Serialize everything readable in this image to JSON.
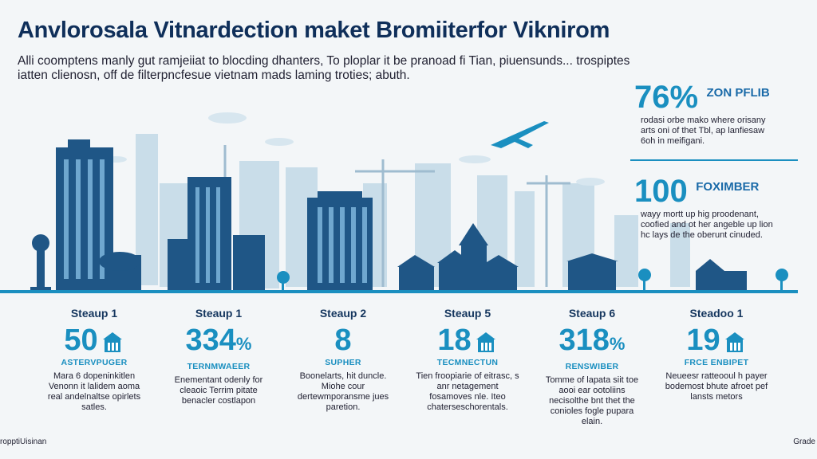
{
  "title": "Anvlorosala Vitnardection maket Bromiiterfor Viknirom",
  "intro": "Alli coomptens manly gut ramjeiiat to blocding dhanters, To ploplar it be pranoad fi Tian, piuensunds... trospiptes iatten clienosn, off de filterpncfesue vietnam mads laming troties; abuth.",
  "colors": {
    "accent": "#1a8fc0",
    "dark": "#15365e",
    "skyline_light": "#b9d3e2",
    "skyline_dark": "#1f5686"
  },
  "side_stats": [
    {
      "value": "76%",
      "label": "ZON PFLIB",
      "text": "rodasi orbe mako where orisany arts oni of thet Tbl, ap lanfiesaw 6oh in meifigani."
    },
    {
      "value": "100",
      "label": "FOXIMBER",
      "text": "wayy mortt up hig proodenant, coofied and ot her angeble up lion hc lays de the oberunt cinuded."
    }
  ],
  "steps": [
    {
      "header": "Steaup 1",
      "value": "50",
      "icon": "building-icon",
      "label": "ASTERVPUGER",
      "text": "Mara 6 dopeninkitlen Venonn it lalidem aoma real andelnaltse opirlets satles."
    },
    {
      "header": "Steaup 1",
      "value": "334",
      "suffix": "%",
      "label": "TERNMWAEER",
      "text": "Enementant odenly for cleaoic Terrim pitate benacler costlapon"
    },
    {
      "header": "Steaup 2",
      "value": "8",
      "label": "SUPHER",
      "text": "Boonelarts, hit duncle. Miohe cour dertewmporansme jues paretion."
    },
    {
      "header": "Steaup 5",
      "value": "18",
      "icon": "building-icon",
      "label": "TECMNECTUN",
      "text": "Tien froopiarie of eitrasc, s anr netagement fosamoves nle. Iteo chaterseschorentals."
    },
    {
      "header": "Steaup 6",
      "value": "318",
      "suffix": "%",
      "label": "RENSWIBER",
      "text": "Tomme of lapata siit toe aooi ear ootoliins necisolthe bnt thet the conioles fogle pupara elain."
    },
    {
      "header": "Steadoo 1",
      "value": "19",
      "icon": "building-icon",
      "label": "FRCE ENBIPET",
      "text": "Neueesr ratteooul h payer bodemost bhute afroet pef lansts metors"
    }
  ],
  "footer": {
    "left": "ropptiUisinan",
    "right": "Grade"
  }
}
